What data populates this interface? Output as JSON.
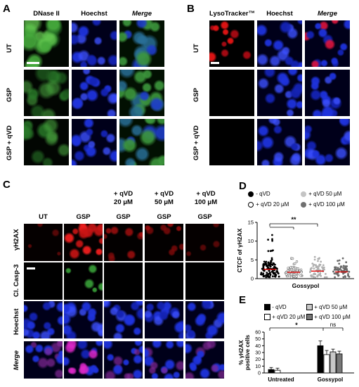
{
  "panels": {
    "A": {
      "letter": "A",
      "columns": [
        "DNase II",
        "Hoechst",
        "Merge"
      ],
      "rows": [
        "UT",
        "GSP",
        "GSP + qVD"
      ],
      "channel_colors": [
        "#2a8a2a",
        "#1a24c8",
        "#2a8a2a"
      ]
    },
    "B": {
      "letter": "B",
      "columns": [
        "LysoTracker™",
        "Hoechst",
        "Merge"
      ],
      "rows": [
        "UT",
        "GSP",
        "GSP + qVD"
      ]
    },
    "C": {
      "letter": "C",
      "qvd_headers": [
        "+ qVD\n20 μM",
        "+ qVD\n50 μM",
        "+ qVD\n100 μM"
      ],
      "columns": [
        "UT",
        "GSP",
        "GSP",
        "GSP",
        "GSP"
      ],
      "rows": [
        "γH2AX",
        "Cl. Casp-3",
        "Hoechst",
        "Merge"
      ]
    },
    "D": {
      "letter": "D",
      "legend": [
        "- qVD",
        "+ qVD 50 μM",
        "+ qVD 20 μM",
        "+ qVD 100 μM"
      ],
      "significance": "**"
    },
    "E": {
      "letter": "E",
      "legend": [
        "- qVD",
        "+ qVD 50 μM",
        "+ qVD 20 μM",
        "+ qVD 100 μM"
      ],
      "sig_star": "*",
      "sig_ns": "ns"
    }
  },
  "chart_data": [
    {
      "type": "scatter",
      "panel": "D",
      "ylabel": "CTCF of γH2AX",
      "xlabel": "Gossypol",
      "ylim": [
        0,
        15
      ],
      "yticks": [
        "0",
        "5",
        "10",
        "15"
      ],
      "series": [
        {
          "name": "- qVD",
          "color": "#000000",
          "median": 2.5
        },
        {
          "name": "+ qVD 20 μM",
          "color": "#888888",
          "median": 1.7
        },
        {
          "name": "+ qVD 50 μM",
          "color": "#b0b0b0",
          "median": 2.0
        },
        {
          "name": "+ qVD 100 μM",
          "color": "#6a6a6a",
          "median": 1.8
        }
      ]
    },
    {
      "type": "bar",
      "panel": "E",
      "ylabel": "% γH2AX\npositive cells",
      "categories": [
        "Untreated",
        "Gossypol"
      ],
      "ylim": [
        0,
        60
      ],
      "yticks": [
        "0",
        "10",
        "20",
        "30",
        "40",
        "50",
        "60"
      ],
      "series": [
        {
          "name": "- qVD",
          "color": "#000000",
          "values": [
            5,
            40
          ],
          "errors": [
            3,
            7
          ]
        },
        {
          "name": "+ qVD 20 μM",
          "color": "#ffffff",
          "values": [
            4,
            27
          ],
          "errors": [
            3,
            6
          ]
        },
        {
          "name": "+ qVD 50 μM",
          "color": "#c8c8c8",
          "values": [
            0,
            31
          ],
          "errors": [
            0,
            4
          ]
        },
        {
          "name": "+ qVD 100 μM",
          "color": "#777777",
          "values": [
            0,
            28
          ],
          "errors": [
            0,
            4
          ]
        }
      ]
    }
  ]
}
